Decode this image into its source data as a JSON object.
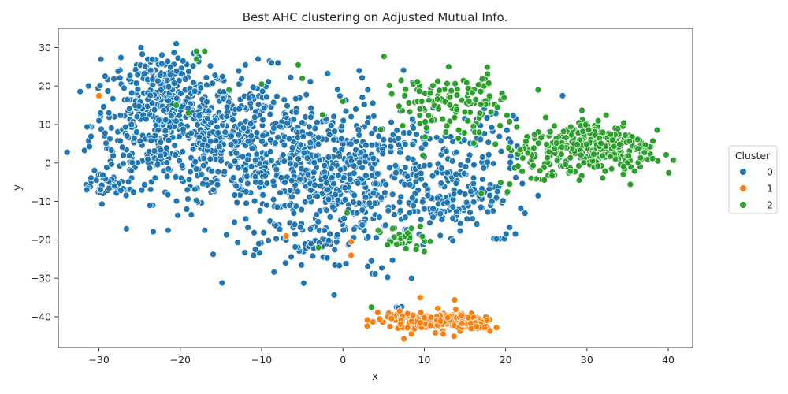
{
  "chart_data": {
    "type": "scatter",
    "title": "Best AHC clustering on Adjusted Mutual Info.",
    "xlabel": "x",
    "ylabel": "y",
    "xlim": [
      -35,
      43
    ],
    "ylim": [
      -48,
      35
    ],
    "xticks": [
      -30,
      -20,
      -10,
      0,
      10,
      20,
      30,
      40
    ],
    "yticks": [
      -40,
      -30,
      -20,
      -10,
      0,
      10,
      20,
      30
    ],
    "grid": false,
    "legend": {
      "title": "Cluster",
      "placement": "center-right outside"
    },
    "series": [
      {
        "name": "0",
        "color": "#1f77b4",
        "regions": [
          {
            "cx": -22,
            "cy": 10,
            "sx": 4.5,
            "sy": 8,
            "n": 420
          },
          {
            "cx": -12,
            "cy": 5,
            "sx": 5,
            "sy": 9,
            "n": 360
          },
          {
            "cx": -3,
            "cy": -3,
            "sx": 4,
            "sy": 9,
            "n": 300
          },
          {
            "cx": 4,
            "cy": -5,
            "sx": 4,
            "sy": 10,
            "n": 220
          },
          {
            "cx": -29,
            "cy": -6,
            "sx": 1.8,
            "sy": 2.2,
            "n": 45
          },
          {
            "cx": 13,
            "cy": -4,
            "sx": 4,
            "sy": 7,
            "n": 130
          },
          {
            "cx": 16,
            "cy": 5,
            "sx": 2.5,
            "sy": 6,
            "n": 40
          },
          {
            "cx": 14,
            "cy": -11,
            "sx": 3,
            "sy": 2,
            "n": 40
          },
          {
            "cx": 20,
            "cy": -19.5,
            "sx": 0.6,
            "sy": 0.5,
            "n": 6
          },
          {
            "cx": -22,
            "cy": 23,
            "sx": 3,
            "sy": 2.5,
            "n": 60
          },
          {
            "cx": -6,
            "cy": -20,
            "sx": 3,
            "sy": 2.5,
            "n": 40
          },
          {
            "cx": 7,
            "cy": -38,
            "sx": 0.5,
            "sy": 1,
            "n": 3
          }
        ],
        "points": [
          [
            -30,
            11
          ],
          [
            -31.5,
            -7
          ],
          [
            -27,
            2
          ],
          [
            -20.5,
            31
          ],
          [
            -12,
            25.5
          ],
          [
            -8,
            26
          ],
          [
            27,
            17.5
          ],
          [
            24,
            -8.5
          ],
          [
            3.5,
            -25.5
          ],
          [
            -21.5,
            -17.5
          ],
          [
            -17,
            -17.5
          ],
          [
            -11,
            -24
          ],
          [
            2,
            24
          ]
        ]
      },
      {
        "name": "1",
        "color": "#ff7f0e",
        "regions": [
          {
            "cx": 8,
            "cy": -41,
            "sx": 2.5,
            "sy": 1.6,
            "n": 80
          },
          {
            "cx": 13,
            "cy": -41,
            "sx": 2,
            "sy": 1.5,
            "n": 60
          },
          {
            "cx": 16.5,
            "cy": -42,
            "sx": 1,
            "sy": 1,
            "n": 35
          }
        ],
        "points": [
          [
            -30,
            17.5
          ],
          [
            -7,
            -19
          ],
          [
            1,
            -24
          ],
          [
            1,
            -20.5
          ],
          [
            9.5,
            -35
          ]
        ]
      },
      {
        "name": "2",
        "color": "#2ca02c",
        "regions": [
          {
            "cx": 31,
            "cy": 5,
            "sx": 3.2,
            "sy": 3.5,
            "n": 230
          },
          {
            "cx": 24,
            "cy": 2,
            "sx": 2.5,
            "sy": 4,
            "n": 70
          },
          {
            "cx": 13,
            "cy": 14,
            "sx": 3,
            "sy": 4,
            "n": 70
          },
          {
            "cx": 17,
            "cy": 18,
            "sx": 1.5,
            "sy": 2.5,
            "n": 30
          },
          {
            "cx": 7,
            "cy": -19.5,
            "sx": 1.5,
            "sy": 1.5,
            "n": 25
          },
          {
            "cx": 9,
            "cy": 17,
            "sx": 2,
            "sy": 3,
            "n": 25
          },
          {
            "cx": 35,
            "cy": 2,
            "sx": 2,
            "sy": 3,
            "n": 40
          }
        ],
        "points": [
          [
            -18,
            29
          ],
          [
            -17,
            29
          ],
          [
            -18,
            27
          ],
          [
            -20.5,
            15
          ],
          [
            -19,
            13
          ],
          [
            -5.5,
            25.5
          ],
          [
            -5,
            22
          ],
          [
            -2.5,
            12.5
          ],
          [
            -14,
            19
          ],
          [
            -10,
            20.5
          ],
          [
            3.5,
            -37.5
          ],
          [
            10,
            -23
          ],
          [
            9,
            -22.5
          ],
          [
            9.5,
            -16.5
          ],
          [
            -3,
            -22
          ],
          [
            17,
            -8
          ],
          [
            20.5,
            -5.5
          ],
          [
            19,
            14.5
          ],
          [
            13,
            25
          ],
          [
            24,
            19
          ],
          [
            0.5,
            -13
          ],
          [
            0,
            16
          ]
        ]
      }
    ]
  }
}
